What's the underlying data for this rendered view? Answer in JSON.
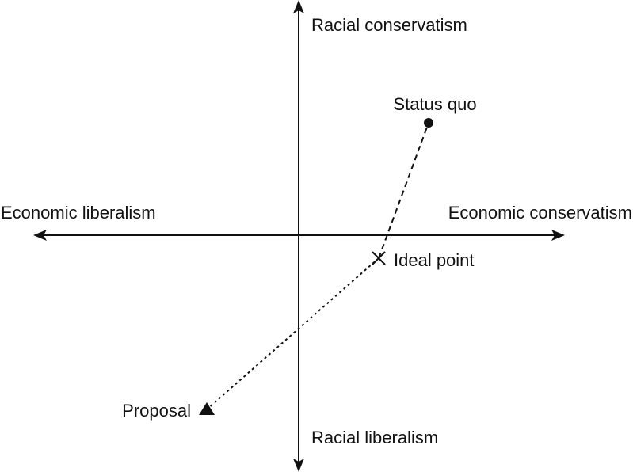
{
  "axes": {
    "y_top": "Racial conservatism",
    "y_bottom": "Racial liberalism",
    "x_left": "Economic liberalism",
    "x_right": "Economic conservatism"
  },
  "points": {
    "status_quo": "Status quo",
    "ideal_point": "Ideal point",
    "proposal": "Proposal"
  },
  "colors": {
    "ink": "#111111",
    "background": "#ffffff"
  }
}
